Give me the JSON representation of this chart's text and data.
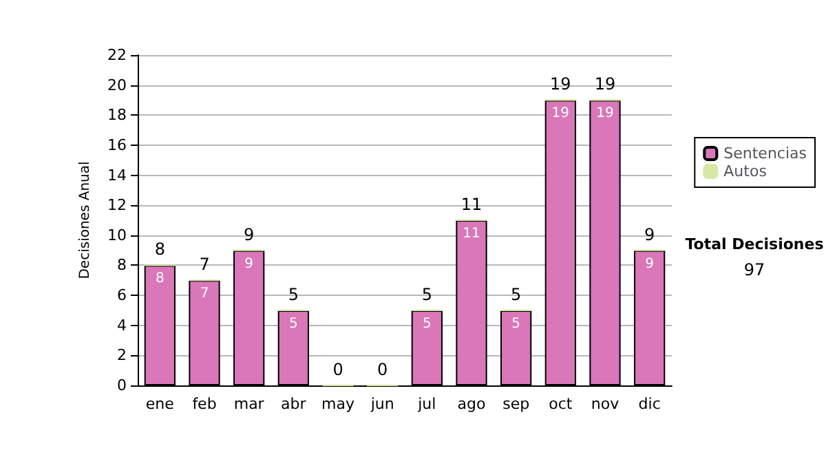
{
  "chart_data": {
    "type": "bar",
    "stacked": true,
    "ylabel": "Decisiones Anual",
    "categories": [
      "ene",
      "feb",
      "mar",
      "abr",
      "may",
      "jun",
      "jul",
      "ago",
      "sep",
      "oct",
      "nov",
      "dic"
    ],
    "series": [
      {
        "name": "Sentencias",
        "color": "#d977b9",
        "values": [
          8,
          7,
          9,
          5,
          0,
          0,
          5,
          11,
          5,
          19,
          19,
          9
        ],
        "value_labels": [
          "8",
          "7",
          "9",
          "5",
          null,
          null,
          "5",
          "11",
          "5",
          "19",
          "19",
          "9"
        ]
      },
      {
        "name": "Autos",
        "color": "#d6e8a4",
        "values": [
          0,
          0,
          0,
          0,
          0,
          0,
          0,
          0,
          0,
          0,
          0,
          0
        ]
      }
    ],
    "totals": [
      "8",
      "7",
      "9",
      "5",
      "0",
      "0",
      "5",
      "11",
      "5",
      "19",
      "19",
      "9"
    ],
    "ylim": [
      0,
      22
    ],
    "yticks": [
      0,
      2,
      4,
      6,
      8,
      10,
      12,
      14,
      16,
      18,
      20,
      22
    ],
    "grid": "y",
    "legend": "right",
    "annotations": [
      "Total Decisiones",
      "97"
    ]
  }
}
